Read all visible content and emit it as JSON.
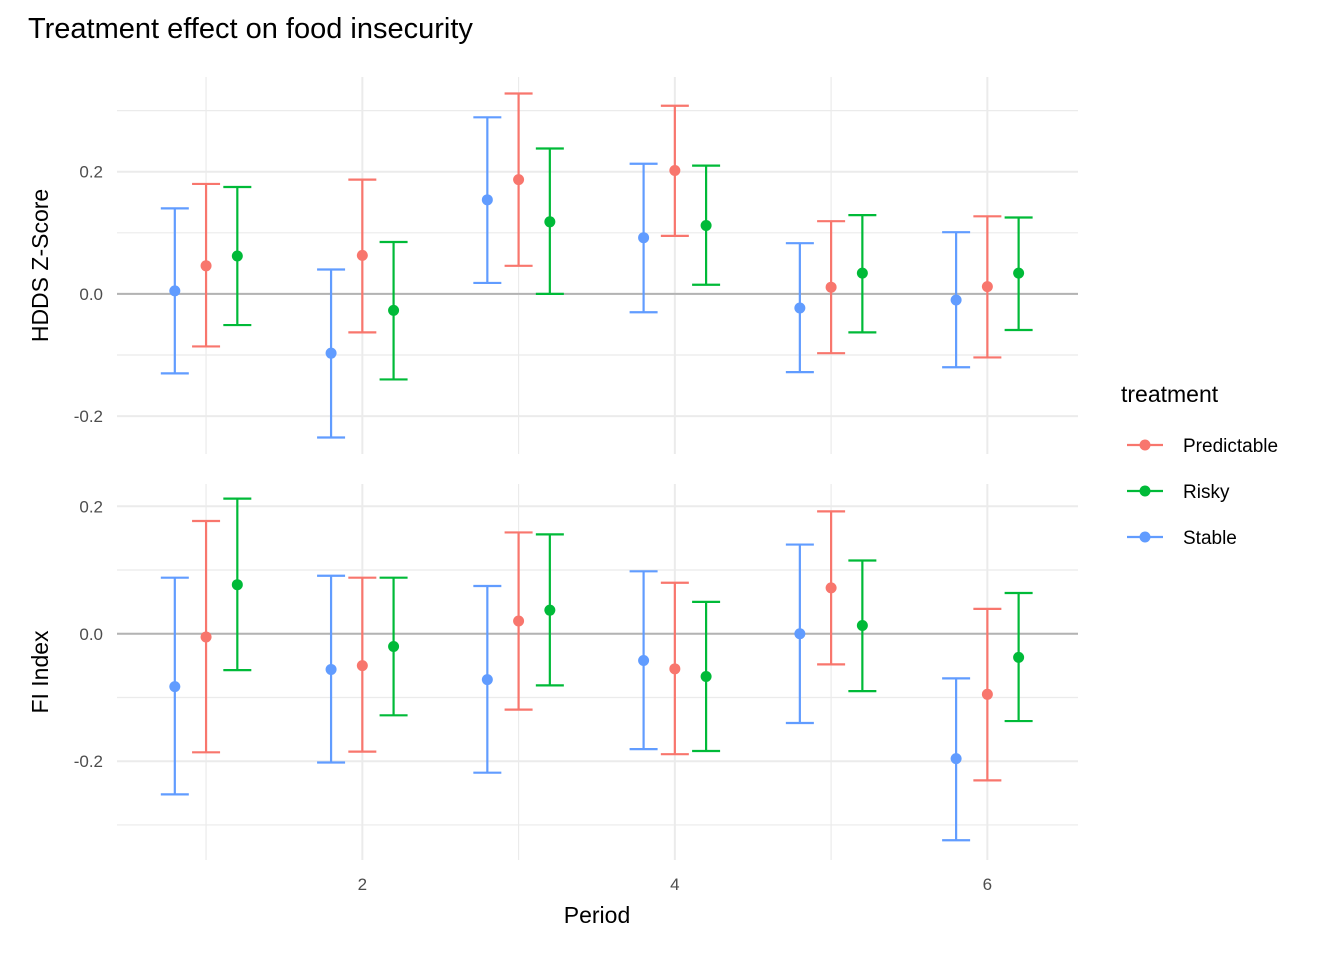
{
  "chart_data": {
    "type": "errorbar",
    "title": "Treatment effect on food insecurity",
    "xlabel": "Period",
    "x_ticks": [
      2,
      4,
      6
    ],
    "x": [
      1,
      2,
      3,
      4,
      5,
      6
    ],
    "xlim": [
      0.43,
      6.58
    ],
    "grid": true,
    "legend": {
      "title": "treatment",
      "position": "right",
      "entries": [
        "Predictable",
        "Risky",
        "Stable"
      ]
    },
    "colors": {
      "Predictable": "#F8766D",
      "Risky": "#00BA38",
      "Stable": "#619CFF"
    },
    "dodge_order": [
      "Stable",
      "Predictable",
      "Risky"
    ],
    "dodge_width": 0.2,
    "panels": [
      {
        "ylabel": "HDDS Z-Score",
        "ylim": [
          -0.262,
          0.355
        ],
        "y_ticks": [
          -0.2,
          0.0,
          0.2
        ],
        "y_ticks_labels": [
          "-0.2",
          "0.0",
          "0.2"
        ],
        "y_minor": [
          -0.1,
          0.1,
          0.3
        ],
        "series": [
          {
            "name": "Stable",
            "estimate": [
              0.005,
              -0.097,
              0.154,
              0.092,
              -0.023,
              -0.01
            ],
            "lower": [
              -0.13,
              -0.235,
              0.018,
              -0.03,
              -0.128,
              -0.12
            ],
            "upper": [
              0.14,
              0.04,
              0.289,
              0.213,
              0.083,
              0.101
            ]
          },
          {
            "name": "Predictable",
            "estimate": [
              0.046,
              0.063,
              0.187,
              0.202,
              0.011,
              0.012
            ],
            "lower": [
              -0.086,
              -0.063,
              0.046,
              0.095,
              -0.097,
              -0.104
            ],
            "upper": [
              0.18,
              0.187,
              0.328,
              0.308,
              0.119,
              0.127
            ]
          },
          {
            "name": "Risky",
            "estimate": [
              0.062,
              -0.027,
              0.118,
              0.112,
              0.034,
              0.034
            ],
            "lower": [
              -0.051,
              -0.14,
              0.0,
              0.015,
              -0.063,
              -0.059
            ],
            "upper": [
              0.175,
              0.085,
              0.238,
              0.21,
              0.129,
              0.125
            ]
          }
        ]
      },
      {
        "ylabel": "FI Index",
        "ylim": [
          -0.355,
          0.235
        ],
        "y_ticks": [
          -0.2,
          0.0,
          0.2
        ],
        "y_ticks_labels": [
          "-0.2",
          "0.0",
          "0.2"
        ],
        "y_minor": [
          -0.3,
          -0.1,
          0.1
        ],
        "series": [
          {
            "name": "Stable",
            "estimate": [
              -0.083,
              -0.056,
              -0.072,
              -0.042,
              0.0,
              -0.196
            ],
            "lower": [
              -0.252,
              -0.202,
              -0.218,
              -0.181,
              -0.14,
              -0.324
            ],
            "upper": [
              0.088,
              0.091,
              0.075,
              0.098,
              0.14,
              -0.07
            ]
          },
          {
            "name": "Predictable",
            "estimate": [
              -0.005,
              -0.05,
              0.02,
              -0.055,
              0.072,
              -0.095
            ],
            "lower": [
              -0.186,
              -0.185,
              -0.119,
              -0.189,
              -0.048,
              -0.23
            ],
            "upper": [
              0.177,
              0.088,
              0.159,
              0.08,
              0.192,
              0.039
            ]
          },
          {
            "name": "Risky",
            "estimate": [
              0.077,
              -0.02,
              0.037,
              -0.067,
              0.013,
              -0.037
            ],
            "lower": [
              -0.057,
              -0.128,
              -0.081,
              -0.184,
              -0.09,
              -0.137
            ],
            "upper": [
              0.212,
              0.088,
              0.156,
              0.05,
              0.115,
              0.064
            ]
          }
        ]
      }
    ]
  }
}
